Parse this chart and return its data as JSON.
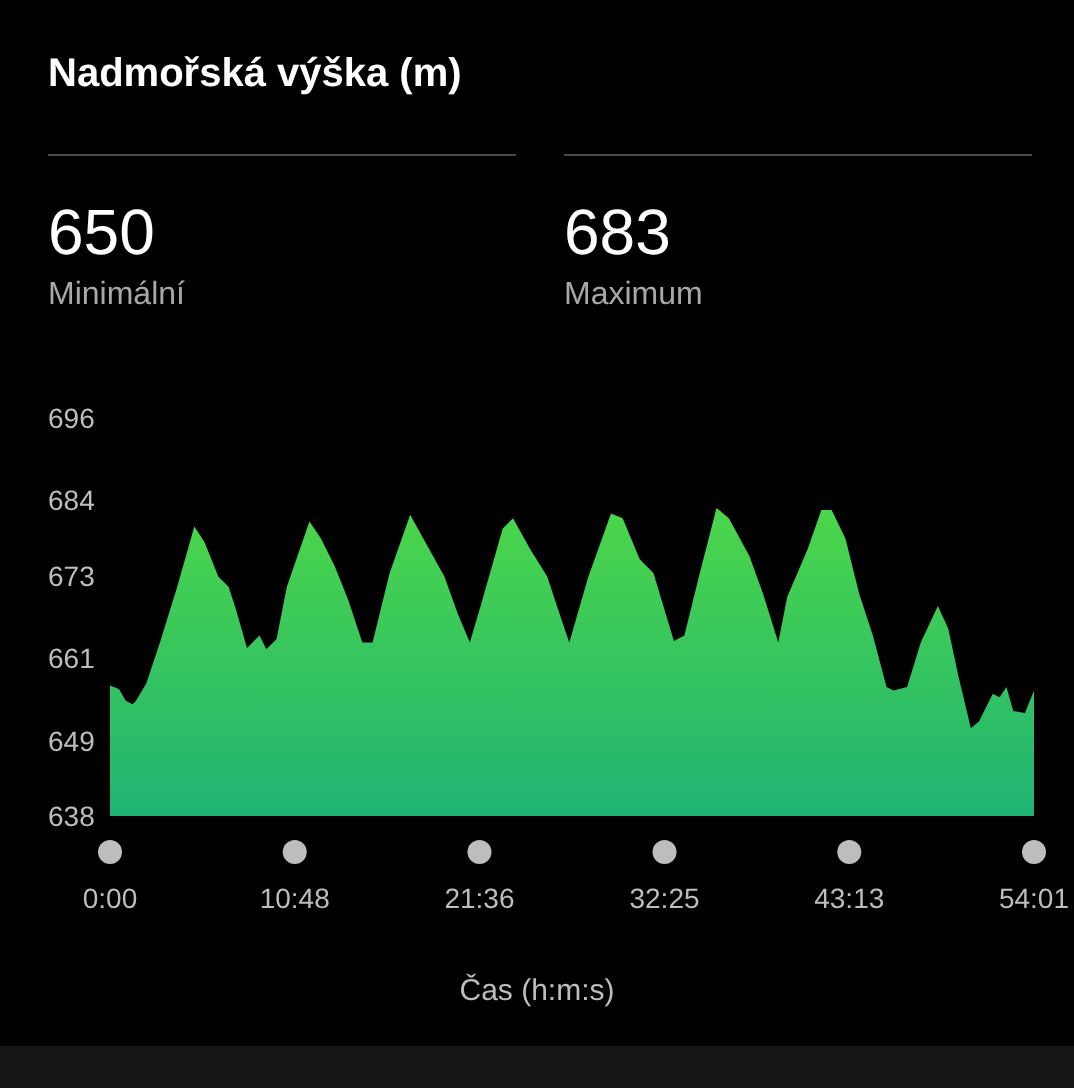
{
  "chart_data": {
    "type": "area",
    "title": "Nadmořská výška (m)",
    "xlabel": "Čas (h:m:s)",
    "annotations": [
      "650",
      "Minimální",
      "683",
      "Maximum"
    ],
    "x": [
      0,
      0.52,
      0.92,
      1.32,
      1.52,
      2.12,
      2.92,
      3.93,
      4.93,
      5.53,
      6.33,
      6.93,
      7.33,
      8.01,
      8.74,
      9.14,
      9.74,
      10.34,
      11.66,
      12.34,
      13.14,
      13.94,
      14.75,
      15.35,
      16.35,
      17.55,
      18.55,
      19.55,
      20.36,
      21.04,
      21.76,
      22.96,
      23.56,
      24.56,
      25.56,
      26.16,
      26.85,
      27.97,
      29.29,
      29.97,
      30.97,
      31.77,
      32.97,
      33.58,
      34.38,
      35.46,
      36.18,
      37.38,
      38.18,
      39.07,
      39.59,
      40.79,
      41.59,
      42.19,
      43.0,
      43.8,
      44.6,
      45.4,
      45.8,
      46.6,
      47.4,
      48.4,
      49.01,
      49.61,
      50.33,
      50.81,
      51.61,
      52.01,
      52.41,
      52.81,
      53.49,
      54.02
    ],
    "series": [
      {
        "color": "#4cd64a",
        "values": [
          657.0,
          656.5,
          654.8,
          654.3,
          654.8,
          657.3,
          663.3,
          671.4,
          680.2,
          677.9,
          672.9,
          671.4,
          668.4,
          662.5,
          664.3,
          662.3,
          663.8,
          671.4,
          680.9,
          678.4,
          674.4,
          669.4,
          663.3,
          663.3,
          673.4,
          681.9,
          677.4,
          672.9,
          667.3,
          663.3,
          669.4,
          679.9,
          681.4,
          676.9,
          672.9,
          668.4,
          663.3,
          672.9,
          682.1,
          681.4,
          675.4,
          673.4,
          663.5,
          664.3,
          672.4,
          682.9,
          681.4,
          675.9,
          670.4,
          663.3,
          669.9,
          676.9,
          682.6,
          682.6,
          678.4,
          670.4,
          664.3,
          656.8,
          656.3,
          656.8,
          663.3,
          668.6,
          665.3,
          658.3,
          650.8,
          651.8,
          655.8,
          655.3,
          656.8,
          653.3,
          653.0,
          656.3
        ]
      }
    ],
    "xlim": [
      0,
      54.02
    ],
    "xticks": [
      {
        "value": 0,
        "label": "0:00"
      },
      {
        "value": 10.8,
        "label": "10:48"
      },
      {
        "value": 21.6,
        "label": "21:36"
      },
      {
        "value": 32.42,
        "label": "32:25"
      },
      {
        "value": 43.22,
        "label": "43:13"
      },
      {
        "value": 54.02,
        "label": "54:01"
      }
    ],
    "ylim": [
      638,
      696
    ],
    "yticks": [
      638,
      649,
      661,
      673,
      684,
      696
    ]
  }
}
